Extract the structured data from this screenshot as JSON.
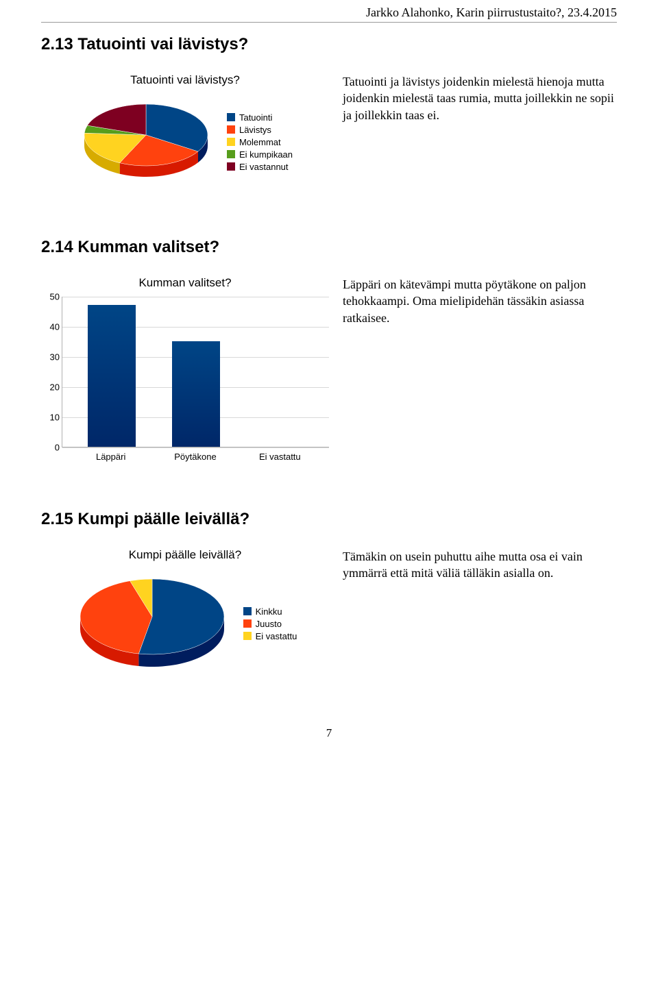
{
  "header": {
    "running_text": "Jarkko Alahonko, Karin piirrustustaito?, 23.4.2015"
  },
  "section1": {
    "title": "2.13 Tatuointi vai lävistys?",
    "chart": {
      "title": "Tatuointi vai lävistys?",
      "type": "pie",
      "slices": [
        {
          "label": "Tatuointi",
          "color": "#004586",
          "fraction": 0.34
        },
        {
          "label": "Lävistys",
          "color": "#ff420e",
          "fraction": 0.23
        },
        {
          "label": "Molemmat",
          "color": "#ffd320",
          "fraction": 0.19
        },
        {
          "label": "Ei kumpikaan",
          "color": "#579d1c",
          "fraction": 0.04
        },
        {
          "label": "Ei vastannut",
          "color": "#7e0021",
          "fraction": 0.2
        }
      ],
      "background_color": "#ffffff"
    },
    "body_text": "Tatuointi ja lävistys joidenkin mielestä hienoja mutta joidenkin mielestä taas rumia, mutta joillekkin ne sopii ja joillekkin taas ei."
  },
  "section2": {
    "title": "2.14 Kumman valitset?",
    "chart": {
      "title": "Kumman valitset?",
      "type": "bar",
      "categories": [
        "Läppäri",
        "Pöytäkone",
        "Ei vastattu"
      ],
      "values": [
        47,
        35,
        0
      ],
      "bar_color": "#004586",
      "ylim": [
        0,
        50
      ],
      "ytick_step": 10,
      "grid_color": "#d8d8d8",
      "axis_color": "#b0b0b0",
      "label_fontsize": 13,
      "background_color": "#ffffff"
    },
    "body_text": "Läppäri on kätevämpi mutta pöytäkone on paljon tehokkaampi. Oma mielipidehän tässäkin asiassa ratkaisee."
  },
  "section3": {
    "title": "2.15 Kumpi päälle leivällä?",
    "chart": {
      "title": "Kumpi päälle leivällä?",
      "type": "pie",
      "slices": [
        {
          "label": "Kinkku",
          "color": "#004586",
          "fraction": 0.53
        },
        {
          "label": "Juusto",
          "color": "#ff420e",
          "fraction": 0.42
        },
        {
          "label": "Ei vastattu",
          "color": "#ffd320",
          "fraction": 0.05
        }
      ],
      "background_color": "#ffffff"
    },
    "body_text": "Tämäkin on usein puhuttu aihe mutta osa ei vain ymmärrä että mitä väliä tälläkin asialla on."
  },
  "page_number": "7"
}
